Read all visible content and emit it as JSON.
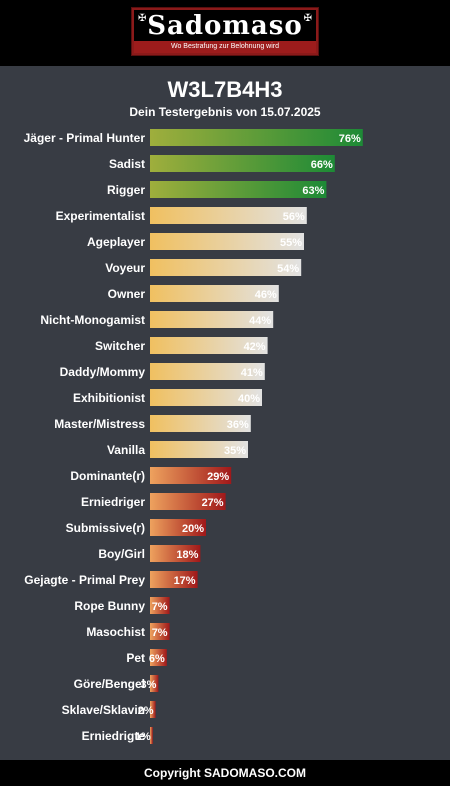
{
  "header": {
    "logo_text": "Sadomaso",
    "logo_tagline": "Wo Bestrafung zur Belohnung wird"
  },
  "title": "W3L7B4H3",
  "subtitle": "Dein Testergebnis von 15.07.2025",
  "footer": "Copyright SADOMASO.COM",
  "colors": {
    "background": "#383c44",
    "high_start": "#9fae3c",
    "high_end": "#1d8a36",
    "mid_start": "#f0c060",
    "mid_end": "#e2e2e2",
    "low_start": "#eea25e",
    "low_end": "#a0181a"
  },
  "chart_data": {
    "type": "bar",
    "orientation": "horizontal",
    "xlim": [
      0,
      100
    ],
    "unit": "%",
    "categories": [
      "Jäger - Primal Hunter",
      "Sadist",
      "Rigger",
      "Experimentalist",
      "Ageplayer",
      "Voyeur",
      "Owner",
      "Nicht-Monogamist",
      "Switcher",
      "Daddy/Mommy",
      "Exhibitionist",
      "Master/Mistress",
      "Vanilla",
      "Dominante(r)",
      "Erniedriger",
      "Submissive(r)",
      "Boy/Girl",
      "Gejagte - Primal Prey",
      "Rope Bunny",
      "Masochist",
      "Pet",
      "Göre/Bengel",
      "Sklave/Sklavin",
      "Erniedrigte"
    ],
    "values": [
      76,
      66,
      63,
      56,
      55,
      54,
      46,
      44,
      42,
      41,
      40,
      36,
      35,
      29,
      27,
      20,
      18,
      17,
      7,
      7,
      6,
      3,
      2,
      1
    ],
    "labels": [
      "76%",
      "66%",
      "63%",
      "56%",
      "55%",
      "54%",
      "46%",
      "44%",
      "42%",
      "41%",
      "40%",
      "36%",
      "35%",
      "29%",
      "27%",
      "20%",
      "18%",
      "17%",
      "7%",
      "7%",
      "6%",
      "3%",
      "2%",
      "1%"
    ]
  }
}
